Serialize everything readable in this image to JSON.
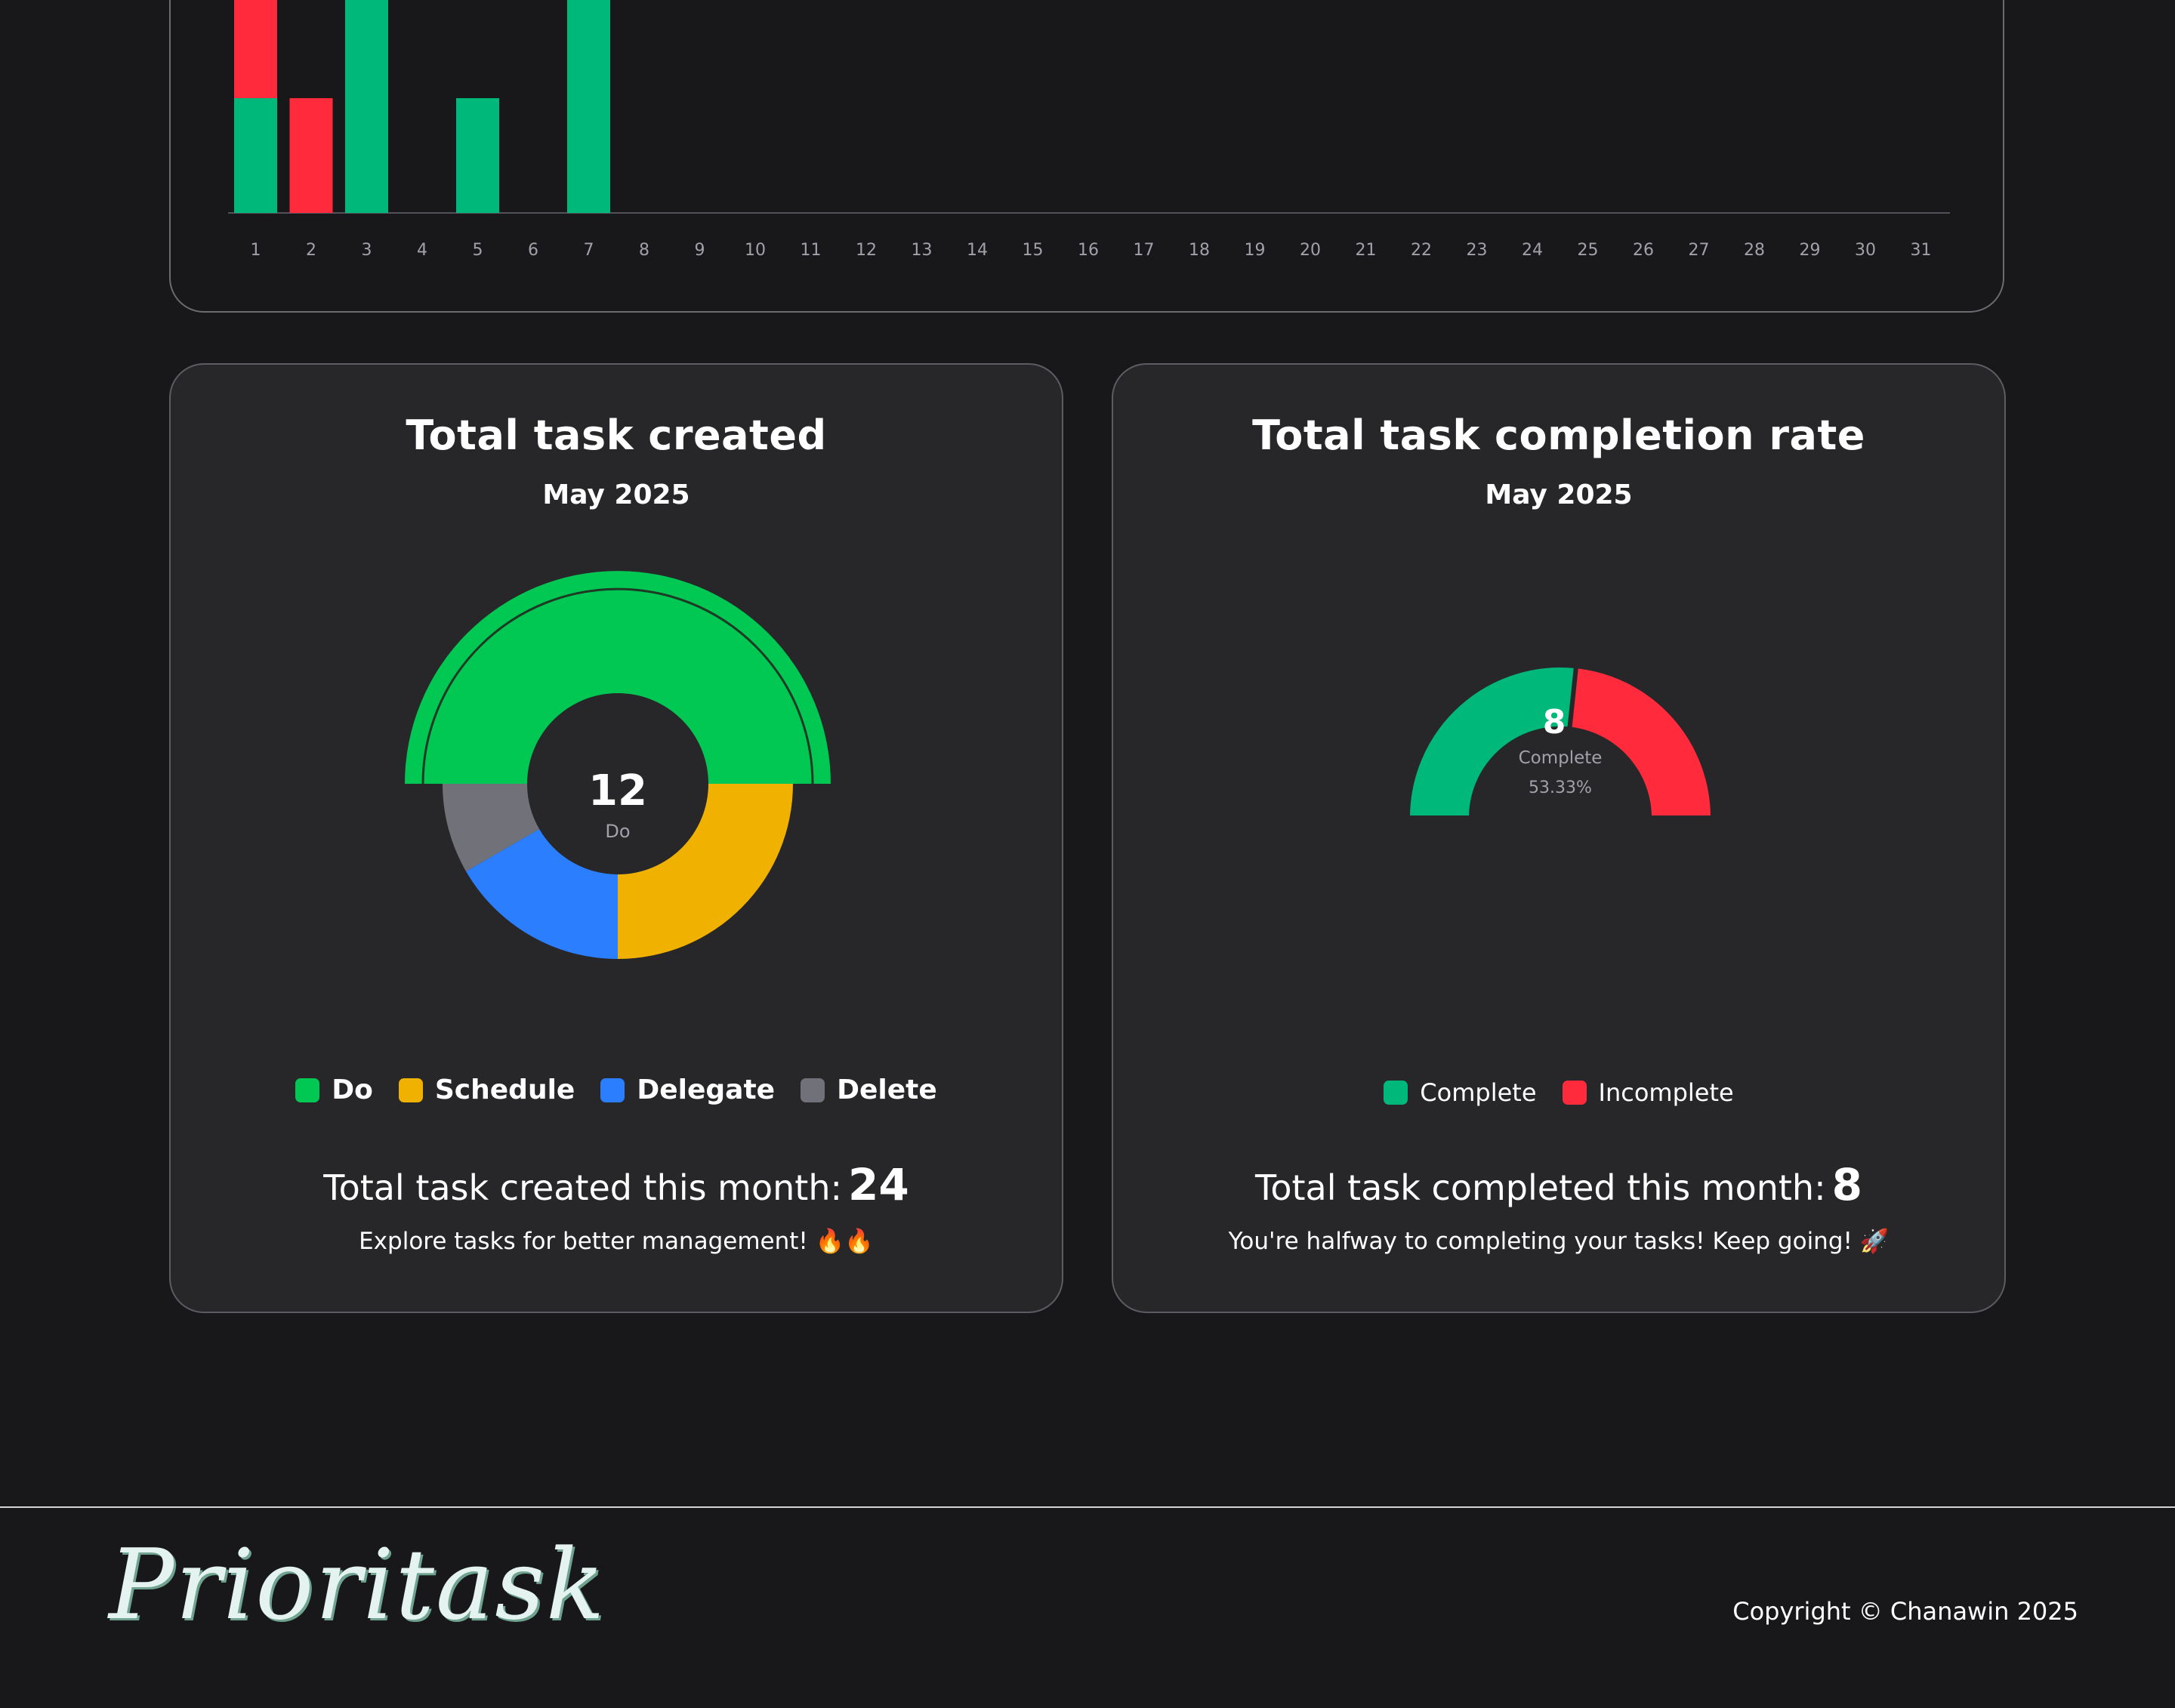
{
  "daily_chart": {
    "chart_data": {
      "type": "bar",
      "stacked": true,
      "categories": [
        "1",
        "2",
        "3",
        "4",
        "5",
        "6",
        "7",
        "8",
        "9",
        "10",
        "11",
        "12",
        "13",
        "14",
        "15",
        "16",
        "17",
        "18",
        "19",
        "20",
        "21",
        "22",
        "23",
        "24",
        "25",
        "26",
        "27",
        "28",
        "29",
        "30",
        "31"
      ],
      "series": [
        {
          "values": [
            1,
            0,
            2,
            0,
            1,
            0,
            2,
            0,
            0,
            0,
            0,
            0,
            0,
            0,
            0,
            0,
            0,
            0,
            0,
            0,
            0,
            0,
            0,
            0,
            0,
            0,
            0,
            0,
            0,
            0,
            0
          ],
          "color": "#00b87a"
        },
        {
          "values": [
            1,
            1,
            0,
            0,
            0,
            0,
            0,
            0,
            0,
            0,
            0,
            0,
            0,
            0,
            0,
            0,
            0,
            0,
            0,
            0,
            0,
            0,
            0,
            0,
            0,
            0,
            0,
            0,
            0,
            0,
            0
          ],
          "color": "#ff2a3c"
        }
      ],
      "grid": false
    }
  },
  "created_card": {
    "title": "Total task created",
    "subtitle": "May 2025",
    "center_value": "12",
    "center_label": "Do",
    "chart_data": {
      "type": "pie",
      "style": "doughnut",
      "categories": [
        "Do",
        "Schedule",
        "Delegate",
        "Delete"
      ],
      "values": [
        12,
        6,
        4,
        2
      ],
      "colors": [
        "#00c853",
        "#f0b100",
        "#2b7fff",
        "#71717a"
      ],
      "highlighted": "Do"
    },
    "legend": [
      {
        "label": "Do",
        "color": "#00c853"
      },
      {
        "label": "Schedule",
        "color": "#f0b100"
      },
      {
        "label": "Delegate",
        "color": "#2b7fff"
      },
      {
        "label": "Delete",
        "color": "#71717a"
      }
    ],
    "total_text": "Total task created this month:",
    "total_value": "24",
    "note": "Explore tasks for better management! 🔥🔥"
  },
  "completion_card": {
    "title": "Total task completion rate",
    "subtitle": "May 2025",
    "center_value": "8",
    "center_label": "Complete",
    "center_percent": "53.33%",
    "chart_data": {
      "type": "pie",
      "style": "half-doughnut",
      "categories": [
        "Complete",
        "Incomplete"
      ],
      "values": [
        8,
        7
      ],
      "colors": [
        "#00b87a",
        "#ff2a3c"
      ]
    },
    "legend": [
      {
        "label": "Complete",
        "color": "#00b87a"
      },
      {
        "label": "Incomplete",
        "color": "#ff2a3c"
      }
    ],
    "total_text": "Total task completed this month:",
    "total_value": "8",
    "note": "You're halfway to completing your tasks! Keep going! 🚀"
  },
  "footer": {
    "logo_text": "Prioritask",
    "copyright": "Copyright © Chanawin 2025"
  }
}
